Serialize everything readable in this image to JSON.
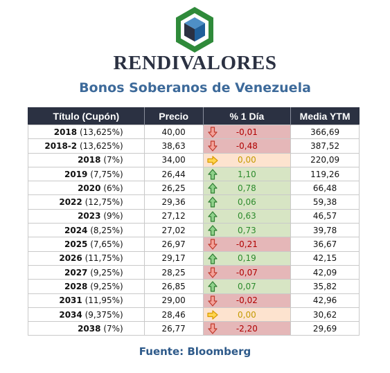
{
  "brand": {
    "name": "RENDIVALORES"
  },
  "heading": {
    "title": "Bonos Soberanos de Venezuela"
  },
  "table": {
    "headers": [
      "Título (Cupón)",
      "Precio",
      "% 1 Día",
      "Media YTM"
    ],
    "rows": [
      {
        "title": "2018",
        "coupon": "(13,625%)",
        "price": "40,00",
        "change": "-0,01",
        "trend": "down",
        "ytm": "366,69"
      },
      {
        "title": "2018-2",
        "coupon": "(13,625%)",
        "price": "38,63",
        "change": "-0,48",
        "trend": "down",
        "ytm": "387,52"
      },
      {
        "title": "2018",
        "coupon": "(7%)",
        "price": "34,00",
        "change": "0,00",
        "trend": "flat",
        "ytm": "220,09"
      },
      {
        "title": "2019",
        "coupon": "(7,75%)",
        "price": "26,44",
        "change": "1,10",
        "trend": "up",
        "ytm": "119,26"
      },
      {
        "title": "2020",
        "coupon": "(6%)",
        "price": "26,25",
        "change": "0,78",
        "trend": "up",
        "ytm": "66,48"
      },
      {
        "title": "2022",
        "coupon": "(12,75%)",
        "price": "29,36",
        "change": "0,06",
        "trend": "up",
        "ytm": "59,38"
      },
      {
        "title": "2023",
        "coupon": "(9%)",
        "price": "27,12",
        "change": "0,63",
        "trend": "up",
        "ytm": "46,57"
      },
      {
        "title": "2024",
        "coupon": "(8,25%)",
        "price": "27,02",
        "change": "0,73",
        "trend": "up",
        "ytm": "39,78"
      },
      {
        "title": "2025",
        "coupon": "(7,65%)",
        "price": "26,97",
        "change": "-0,21",
        "trend": "down",
        "ytm": "36,67"
      },
      {
        "title": "2026",
        "coupon": "(11,75%)",
        "price": "29,17",
        "change": "0,19",
        "trend": "up",
        "ytm": "42,15"
      },
      {
        "title": "2027",
        "coupon": "(9,25%)",
        "price": "28,25",
        "change": "-0,07",
        "trend": "down",
        "ytm": "42,09"
      },
      {
        "title": "2028",
        "coupon": "(9,25%)",
        "price": "26,85",
        "change": "0,07",
        "trend": "up",
        "ytm": "35,82"
      },
      {
        "title": "2031",
        "coupon": "(11,95%)",
        "price": "29,00",
        "change": "-0,02",
        "trend": "down",
        "ytm": "42,96"
      },
      {
        "title": "2034",
        "coupon": "(9,375%)",
        "price": "28,46",
        "change": "0,00",
        "trend": "flat",
        "ytm": "30,62"
      },
      {
        "title": "2038",
        "coupon": "(7%)",
        "price": "26,77",
        "change": "-2,20",
        "trend": "down",
        "ytm": "29,69"
      }
    ]
  },
  "icons": {
    "down": "arrow-down-icon",
    "up": "arrow-up-icon",
    "flat": "arrow-right-icon"
  },
  "colors": {
    "header_bg": "#2b3142",
    "subtitle": "#3d6a9a",
    "source": "#2e5a8a",
    "down_bg": "#e5b7b8",
    "up_bg": "#d7e5c4",
    "flat_bg": "#fde3cf",
    "down_text": "#b00000",
    "up_text": "#2c8a2c",
    "flat_text": "#c49a00"
  },
  "footer": {
    "source": "Fuente: Bloomberg"
  }
}
